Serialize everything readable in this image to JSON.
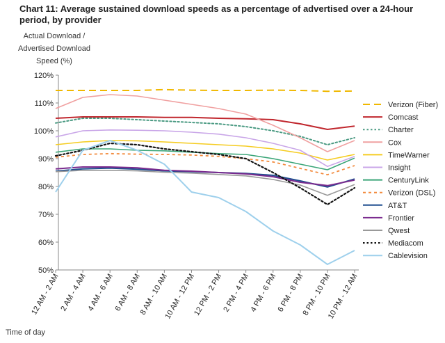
{
  "chart_data": {
    "type": "line",
    "title": "Chart 11: Average sustained download speeds as a percentage of advertised over a 24-hour period, by provider",
    "ylabel": [
      "Actual Download /",
      "Advertised Download",
      "Speed (%)"
    ],
    "xlabel": "Time of day",
    "ylim": [
      50,
      120
    ],
    "yticks": [
      "50%",
      "60%",
      "70%",
      "80%",
      "90%",
      "100%",
      "110%",
      "120%"
    ],
    "grid": false,
    "legend_position": "right",
    "categories": [
      "12 AM - 2 AM",
      "2 AM - 4 AM",
      "4 AM - 6 AM",
      "6 AM - 8 AM",
      "8 AM - 10 AM",
      "10 AM - 12 PM",
      "12 PM - 2 PM",
      "2 PM - 4 PM",
      "4 PM - 6 PM",
      "6 PM - 8 PM",
      "8 PM - 10 PM",
      "10 PM - 12 AM"
    ],
    "series": [
      {
        "name": "Verizon (Fiber)",
        "color": "#f0b800",
        "dash": "long",
        "width": 2,
        "values": [
          114.5,
          114.5,
          114.5,
          114.5,
          114.8,
          114.6,
          114.5,
          114.5,
          114.6,
          114.5,
          114.2,
          114.3
        ]
      },
      {
        "name": "Comcast",
        "color": "#c0262d",
        "dash": "solid",
        "width": 2,
        "values": [
          104.5,
          105,
          105,
          105,
          104.8,
          104.8,
          104.5,
          104.3,
          104,
          102.5,
          100.5,
          101.7
        ]
      },
      {
        "name": "Charter",
        "color": "#4a9a82",
        "dash": "dot",
        "width": 2,
        "values": [
          102.8,
          104.5,
          104.5,
          104,
          103.5,
          103,
          102.5,
          101.5,
          100,
          98,
          95,
          97.5
        ]
      },
      {
        "name": "Cox",
        "color": "#f0a0a0",
        "dash": "solid",
        "width": 1.6,
        "values": [
          108,
          112,
          113,
          112.5,
          111,
          109.5,
          108,
          106,
          102,
          97.5,
          92.5,
          96.5
        ]
      },
      {
        "name": "TimeWarner",
        "color": "#f5cc20",
        "dash": "solid",
        "width": 1.6,
        "values": [
          95,
          96,
          96.5,
          96.4,
          96,
          95.5,
          95,
          94.5,
          93.5,
          92,
          89.5,
          91.5
        ]
      },
      {
        "name": "Insight",
        "color": "#c9a6e8",
        "dash": "solid",
        "width": 1.6,
        "values": [
          97.8,
          100,
          100.3,
          100.2,
          100,
          99.5,
          98.8,
          97.5,
          95.5,
          93,
          87.2,
          90.8
        ]
      },
      {
        "name": "CenturyLink",
        "color": "#3aa577",
        "dash": "solid",
        "width": 1.6,
        "values": [
          92.3,
          93.5,
          93.5,
          93,
          92.8,
          92.3,
          91.8,
          91.5,
          90,
          88,
          86,
          90.2
        ]
      },
      {
        "name": "Verizon (DSL)",
        "color": "#f28a3c",
        "dash": "short",
        "width": 1.8,
        "values": [
          90.5,
          91.5,
          91.8,
          91.6,
          91.5,
          91.3,
          90.8,
          90,
          88.8,
          86.5,
          84.2,
          87.5
        ]
      },
      {
        "name": "AT&T",
        "color": "#1f4e8f",
        "dash": "solid",
        "width": 2,
        "values": [
          85.5,
          86.3,
          86.6,
          86.2,
          85.6,
          85.3,
          85,
          84.7,
          84,
          82,
          79.8,
          82.7
        ]
      },
      {
        "name": "Frontier",
        "color": "#7a2a8e",
        "dash": "solid",
        "width": 2,
        "values": [
          86.3,
          87,
          87,
          86.7,
          85.8,
          85.5,
          85,
          84.5,
          83.5,
          81.5,
          80.3,
          82.3
        ]
      },
      {
        "name": "Qwest",
        "color": "#999999",
        "dash": "solid",
        "width": 1.6,
        "values": [
          85.3,
          85.8,
          85.8,
          85.6,
          85.1,
          84.8,
          84.3,
          83.8,
          82.5,
          80.5,
          76.8,
          80.7
        ]
      },
      {
        "name": "Mediacom",
        "color": "#111111",
        "dash": "dot",
        "width": 2.2,
        "values": [
          91,
          93,
          95.5,
          95,
          93.5,
          92.5,
          91.5,
          90,
          85,
          79.5,
          73.5,
          79.5
        ]
      },
      {
        "name": "Cablevision",
        "color": "#9ed0ec",
        "dash": "solid",
        "width": 2,
        "values": [
          78,
          93,
          96.5,
          93,
          88,
          78,
          76,
          71,
          64,
          59,
          52,
          57
        ]
      }
    ]
  }
}
